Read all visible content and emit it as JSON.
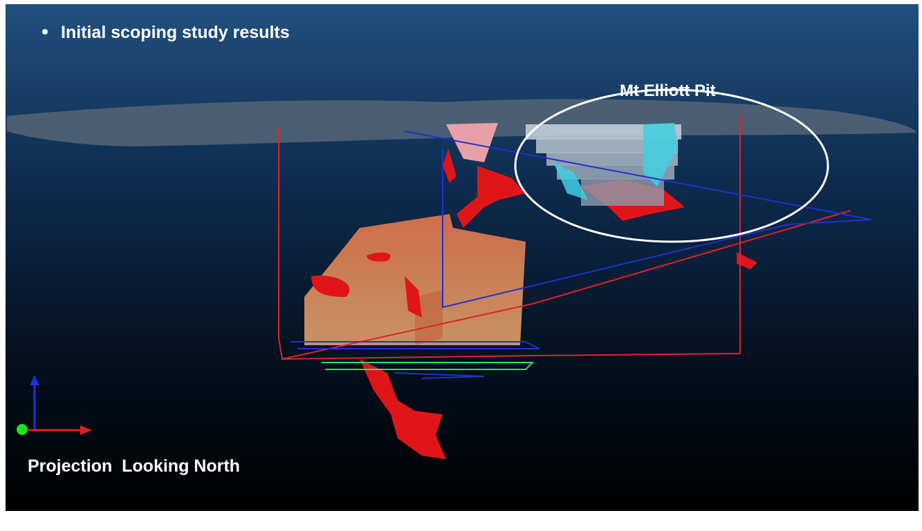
{
  "slide": {
    "bullet": "Initial scoping study results",
    "callout": "Mt Elliott Pit",
    "view_label": "Projection  Looking North"
  }
}
